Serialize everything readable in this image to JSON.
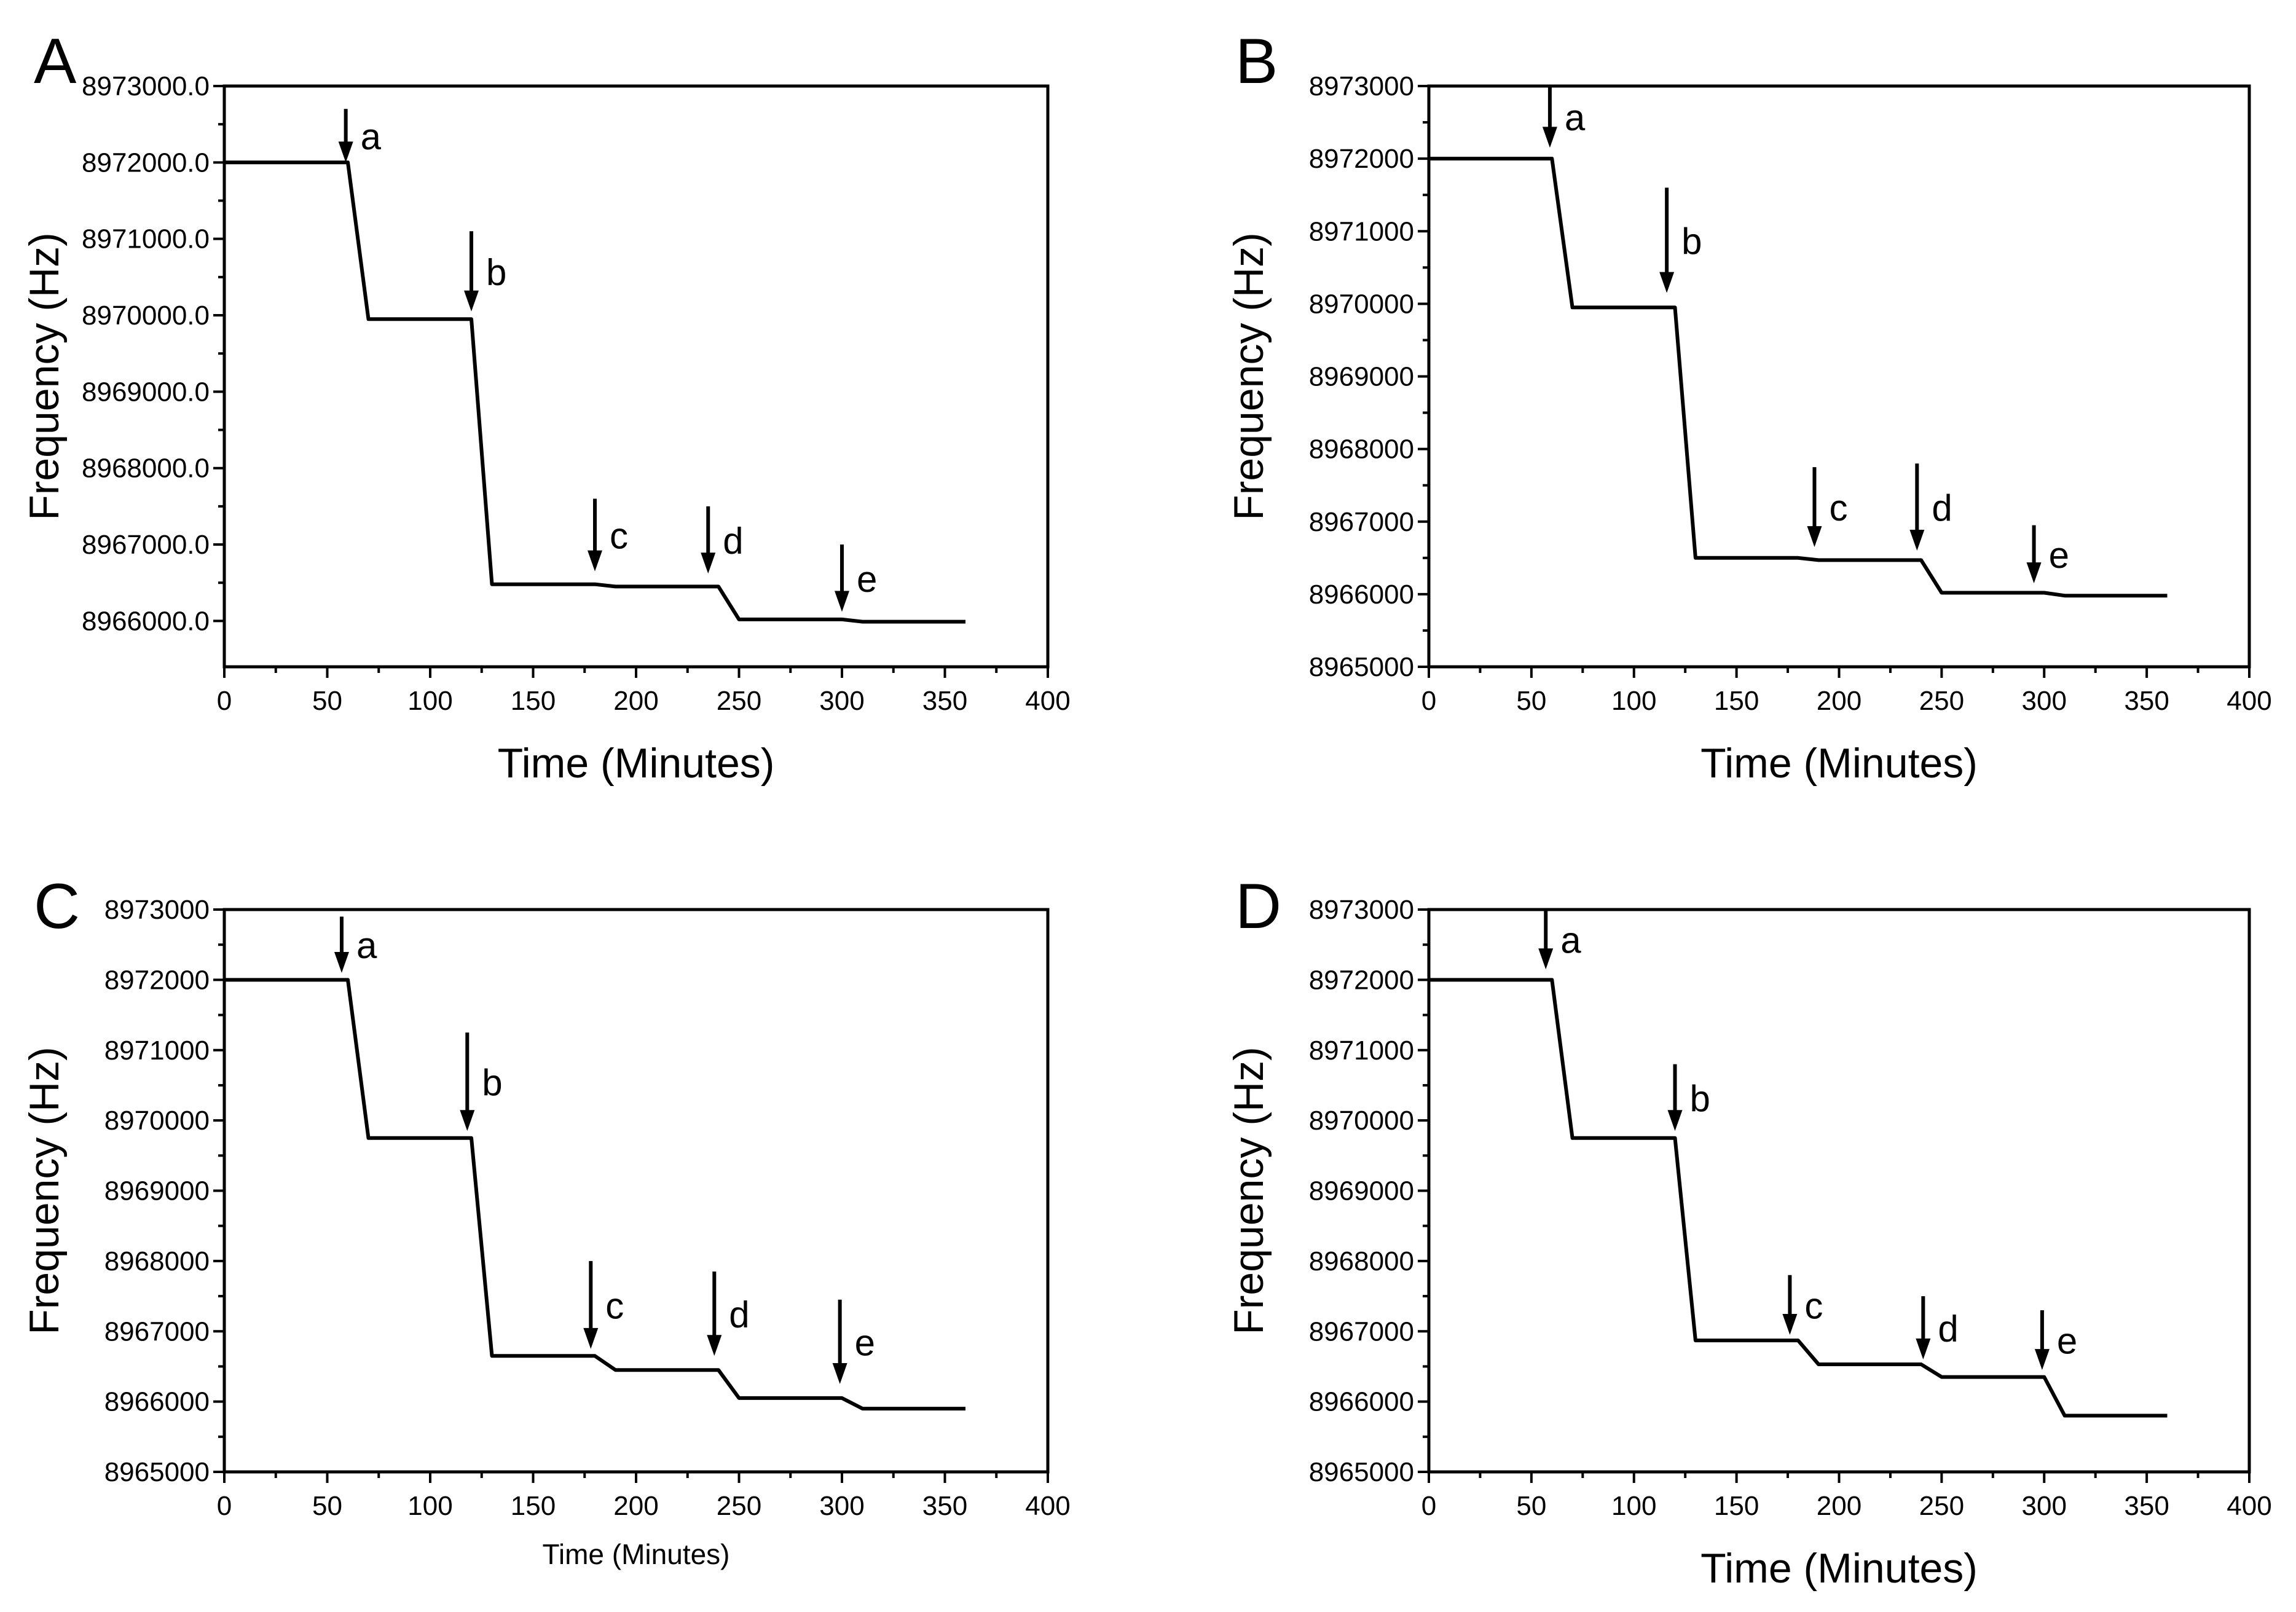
{
  "chart_data": [
    {
      "type": "line",
      "panel_label": "A",
      "xlabel": "Time (Minutes)",
      "ylabel": "Frequency (Hz)",
      "xlim": [
        0,
        400
      ],
      "ylim": [
        8965400,
        8973000
      ],
      "x_ticks": [
        0,
        50,
        100,
        150,
        200,
        250,
        300,
        350,
        400
      ],
      "y_ticks": [
        8966000,
        8967000,
        8968000,
        8969000,
        8970000,
        8971000,
        8972000,
        8973000
      ],
      "y_tick_labels": [
        "8966000.0",
        "8967000.0",
        "8968000.0",
        "8969000.0",
        "8970000.0",
        "8971000.0",
        "8972000.0",
        "8973000.0"
      ],
      "grid": false,
      "series": [
        {
          "name": "Frequency",
          "x": [
            0,
            60,
            70,
            120,
            130,
            180,
            190,
            240,
            250,
            300,
            310,
            360
          ],
          "y": [
            8972000,
            8972000,
            8969950,
            8969950,
            8966480,
            8966480,
            8966450,
            8966450,
            8966020,
            8966020,
            8965990,
            8965990
          ]
        }
      ],
      "annotations": [
        {
          "label": "a",
          "x": 59,
          "y_from": 8972700,
          "y_to": 8972000
        },
        {
          "label": "b",
          "x": 120,
          "y_from": 8971100,
          "y_to": 8970050
        },
        {
          "label": "c",
          "x": 180,
          "y_from": 8967600,
          "y_to": 8966650
        },
        {
          "label": "d",
          "x": 235,
          "y_from": 8967500,
          "y_to": 8966620
        },
        {
          "label": "e",
          "x": 300,
          "y_from": 8967000,
          "y_to": 8966120
        }
      ]
    },
    {
      "type": "line",
      "panel_label": "B",
      "xlabel": "Time (Minutes)",
      "ylabel": "Frequency (Hz)",
      "xlim": [
        0,
        400
      ],
      "ylim": [
        8965000,
        8973000
      ],
      "x_ticks": [
        0,
        50,
        100,
        150,
        200,
        250,
        300,
        350,
        400
      ],
      "y_ticks": [
        8965000,
        8966000,
        8967000,
        8968000,
        8969000,
        8970000,
        8971000,
        8972000,
        8973000
      ],
      "y_tick_labels": [
        "8965000",
        "8966000",
        "8967000",
        "8968000",
        "8969000",
        "8970000",
        "8971000",
        "8972000",
        "8973000"
      ],
      "grid": false,
      "series": [
        {
          "name": "Frequency",
          "x": [
            0,
            60,
            70,
            120,
            130,
            180,
            190,
            240,
            250,
            300,
            310,
            360
          ],
          "y": [
            8972000,
            8972000,
            8969950,
            8969950,
            8966500,
            8966500,
            8966470,
            8966470,
            8966020,
            8966020,
            8965980,
            8965980
          ]
        }
      ],
      "annotations": [
        {
          "label": "a",
          "x": 59,
          "y_from": 8973000,
          "y_to": 8972150
        },
        {
          "label": "b",
          "x": 116,
          "y_from": 8971600,
          "y_to": 8970150
        },
        {
          "label": "c",
          "x": 188,
          "y_from": 8967750,
          "y_to": 8966650
        },
        {
          "label": "d",
          "x": 238,
          "y_from": 8967800,
          "y_to": 8966600
        },
        {
          "label": "e",
          "x": 295,
          "y_from": 8966950,
          "y_to": 8966150
        }
      ]
    },
    {
      "type": "line",
      "panel_label": "C",
      "xlabel": "Time (Minutes)",
      "ylabel": "Frequency (Hz)",
      "xlim": [
        0,
        400
      ],
      "ylim": [
        8965000,
        8973000
      ],
      "x_ticks": [
        0,
        50,
        100,
        150,
        200,
        250,
        300,
        350,
        400
      ],
      "y_ticks": [
        8965000,
        8966000,
        8967000,
        8968000,
        8969000,
        8970000,
        8971000,
        8972000,
        8973000
      ],
      "y_tick_labels": [
        "8965000",
        "8966000",
        "8967000",
        "8968000",
        "8969000",
        "8970000",
        "8971000",
        "8972000",
        "8973000"
      ],
      "grid": false,
      "series": [
        {
          "name": "Frequency",
          "x": [
            0,
            60,
            70,
            120,
            130,
            180,
            190,
            240,
            250,
            300,
            310,
            360
          ],
          "y": [
            8972000,
            8972000,
            8969750,
            8969750,
            8966650,
            8966650,
            8966450,
            8966450,
            8966050,
            8966050,
            8965900,
            8965900
          ]
        }
      ],
      "annotations": [
        {
          "label": "a",
          "x": 57,
          "y_from": 8972900,
          "y_to": 8972100
        },
        {
          "label": "b",
          "x": 118,
          "y_from": 8971250,
          "y_to": 8969850
        },
        {
          "label": "c",
          "x": 178,
          "y_from": 8968000,
          "y_to": 8966750
        },
        {
          "label": "d",
          "x": 238,
          "y_from": 8967850,
          "y_to": 8966650
        },
        {
          "label": "e",
          "x": 299,
          "y_from": 8967450,
          "y_to": 8966250
        }
      ]
    },
    {
      "type": "line",
      "panel_label": "D",
      "xlabel": "Time (Minutes)",
      "ylabel": "Frequency (Hz)",
      "xlim": [
        0,
        400
      ],
      "ylim": [
        8965000,
        8973000
      ],
      "x_ticks": [
        0,
        50,
        100,
        150,
        200,
        250,
        300,
        350,
        400
      ],
      "y_ticks": [
        8965000,
        8966000,
        8967000,
        8968000,
        8969000,
        8970000,
        8971000,
        8972000,
        8973000
      ],
      "y_tick_labels": [
        "8965000",
        "8966000",
        "8967000",
        "8968000",
        "8969000",
        "8970000",
        "8971000",
        "8972000",
        "8973000"
      ],
      "grid": false,
      "series": [
        {
          "name": "Frequency",
          "x": [
            0,
            60,
            70,
            120,
            130,
            180,
            190,
            240,
            250,
            300,
            310,
            360
          ],
          "y": [
            8972000,
            8972000,
            8969750,
            8969750,
            8966870,
            8966870,
            8966530,
            8966530,
            8966350,
            8966350,
            8965800,
            8965800
          ]
        }
      ],
      "annotations": [
        {
          "label": "a",
          "x": 57,
          "y_from": 8973000,
          "y_to": 8972150
        },
        {
          "label": "b",
          "x": 120,
          "y_from": 8970800,
          "y_to": 8969850
        },
        {
          "label": "c",
          "x": 176,
          "y_from": 8967800,
          "y_to": 8966950
        },
        {
          "label": "d",
          "x": 241,
          "y_from": 8967500,
          "y_to": 8966600
        },
        {
          "label": "e",
          "x": 299,
          "y_from": 8967300,
          "y_to": 8966450
        }
      ]
    }
  ]
}
